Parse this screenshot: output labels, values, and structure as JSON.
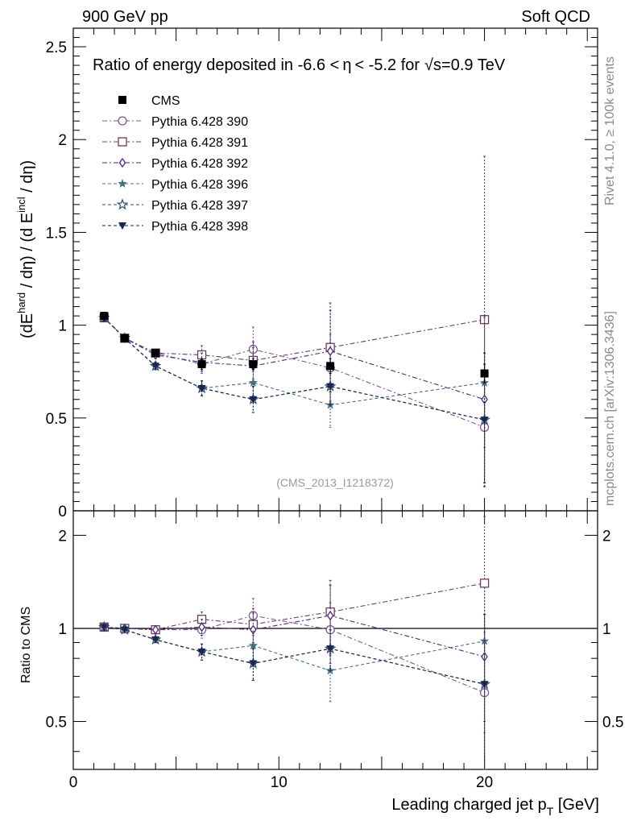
{
  "header": {
    "left": "900 GeV pp",
    "right": "Soft QCD"
  },
  "side_labels": {
    "rivet": "Rivet 4.1.0, ≥ 100k events",
    "mcplots": "mcplots.cern.ch [arXiv:1306.3436]"
  },
  "watermark": "(CMS_2013_I1218372)",
  "colors": {
    "cms": "#000000",
    "p390": "#7d5a8c",
    "p391": "#6e3c5a",
    "p392": "#4b2a7e",
    "p396": "#467082",
    "p397": "#2f4f6e",
    "p398": "#1a2550"
  },
  "chart_data": [
    {
      "type": "scatter",
      "panel": "main",
      "title_parts": {
        "a": "Ratio of energy deposited in -6.6 <",
        "eta": "η",
        "b": "< -5.2 for",
        "sqrt": "√s",
        "c": "=0.9 TeV"
      },
      "ylabel_parts": {
        "p1": "(dE",
        "sup1": "hard",
        "p2": " / dη) / (d E",
        "sup2": "incl",
        "p3": " / dη)"
      },
      "xlim": [
        0,
        25.5
      ],
      "ylim": [
        0,
        2.6
      ],
      "yticks": [
        0,
        0.5,
        1,
        1.5,
        2,
        2.5
      ],
      "ytick_labels": [
        "0",
        "0.5",
        "1",
        "1.5",
        "2",
        "2.5"
      ],
      "x": [
        1.5,
        2.5,
        4.0,
        6.25,
        8.75,
        12.5,
        20.0
      ],
      "series": [
        {
          "name": "CMS",
          "key": "cms",
          "marker": "filled-square",
          "y": [
            1.05,
            0.93,
            0.85,
            0.79,
            0.79,
            0.78,
            0.74
          ],
          "err": [
            0.02,
            0.02,
            0.02,
            0.03,
            0.03,
            0.04,
            0.05
          ]
        },
        {
          "name": "Pythia 6.428 390",
          "key": "p390",
          "marker": "open-circle",
          "dash": "6,3,2,3",
          "y": [
            1.04,
            0.93,
            0.85,
            0.79,
            0.87,
            0.77,
            0.45
          ],
          "err": [
            0.02,
            0.02,
            0.02,
            0.05,
            0.12,
            0.18,
            0.3
          ]
        },
        {
          "name": "Pythia 6.428 391",
          "key": "p391",
          "marker": "open-square",
          "dash": "6,3,2,3",
          "y": [
            1.04,
            0.93,
            0.85,
            0.84,
            0.81,
            0.88,
            1.03
          ],
          "err": [
            0.02,
            0.02,
            0.02,
            0.05,
            0.1,
            0.24,
            0.88
          ]
        },
        {
          "name": "Pythia 6.428 392",
          "key": "p392",
          "marker": "open-diamond",
          "dash": "6,3,2,3",
          "y": [
            1.04,
            0.93,
            0.84,
            0.8,
            0.78,
            0.86,
            0.6
          ],
          "err": [
            0.02,
            0.02,
            0.02,
            0.05,
            0.1,
            0.22,
            0.45
          ]
        },
        {
          "name": "Pythia 6.428 396",
          "key": "p396",
          "marker": "filled-star",
          "dash": "4,3",
          "y": [
            1.04,
            0.93,
            0.78,
            0.66,
            0.69,
            0.57,
            0.69
          ],
          "err": [
            0.02,
            0.02,
            0.02,
            0.04,
            0.08,
            0.12,
            0.35
          ]
        },
        {
          "name": "Pythia 6.428 397",
          "key": "p397",
          "marker": "open-star",
          "dash": "4,3",
          "y": [
            1.04,
            0.93,
            0.78,
            0.66,
            0.6,
            0.67,
            0.49
          ],
          "err": [
            0.02,
            0.02,
            0.02,
            0.04,
            0.07,
            0.1,
            0.36
          ]
        },
        {
          "name": "Pythia 6.428 398",
          "key": "p398",
          "marker": "filled-triangle-down",
          "dash": "4,3",
          "y": [
            1.04,
            0.93,
            0.78,
            0.66,
            0.6,
            0.67,
            0.49
          ],
          "err": [
            0.02,
            0.02,
            0.02,
            0.04,
            0.07,
            0.1,
            0.36
          ]
        }
      ]
    },
    {
      "type": "scatter",
      "panel": "ratio",
      "ylabel": "Ratio to CMS",
      "xlabel_parts": {
        "main": "Leading charged jet p",
        "sub": "T",
        "unit": " [GeV]"
      },
      "xlim": [
        0,
        25.5
      ],
      "ylim": [
        0.35,
        2.4
      ],
      "yscale": "log",
      "xticks": [
        0,
        10,
        20
      ],
      "xtick_labels": [
        "0",
        "10",
        "20"
      ],
      "yticks": [
        0.5,
        1,
        2
      ],
      "ytick_labels": [
        "0.5",
        "1",
        "2"
      ],
      "x": [
        1.5,
        2.5,
        4.0,
        6.25,
        8.75,
        12.5,
        20.0
      ],
      "series": [
        {
          "name": "Pythia 6.428 390",
          "key": "p390",
          "marker": "open-circle",
          "dash": "6,3,2,3",
          "y": [
            1.01,
            1.0,
            0.99,
            0.99,
            1.1,
            0.99,
            0.62
          ],
          "err": [
            0.02,
            0.02,
            0.02,
            0.06,
            0.15,
            0.22,
            0.35
          ]
        },
        {
          "name": "Pythia 6.428 391",
          "key": "p391",
          "marker": "open-square",
          "dash": "6,3,2,3",
          "y": [
            1.01,
            1.0,
            0.99,
            1.07,
            1.03,
            1.13,
            1.4
          ],
          "err": [
            0.02,
            0.02,
            0.02,
            0.06,
            0.13,
            0.3,
            0.9
          ]
        },
        {
          "name": "Pythia 6.428 392",
          "key": "p392",
          "marker": "open-diamond",
          "dash": "6,3,2,3",
          "y": [
            1.01,
            1.0,
            0.99,
            1.01,
            0.99,
            1.1,
            0.81
          ],
          "err": [
            0.02,
            0.02,
            0.02,
            0.06,
            0.13,
            0.28,
            0.55
          ]
        },
        {
          "name": "Pythia 6.428 396",
          "key": "p396",
          "marker": "filled-star",
          "dash": "4,3",
          "y": [
            1.01,
            0.99,
            0.92,
            0.84,
            0.88,
            0.73,
            0.91
          ],
          "err": [
            0.02,
            0.02,
            0.02,
            0.05,
            0.1,
            0.15,
            0.45
          ]
        },
        {
          "name": "Pythia 6.428 397",
          "key": "p397",
          "marker": "open-star",
          "dash": "4,3",
          "y": [
            1.01,
            0.99,
            0.92,
            0.84,
            0.77,
            0.86,
            0.66
          ],
          "err": [
            0.02,
            0.02,
            0.02,
            0.05,
            0.09,
            0.13,
            0.45
          ]
        },
        {
          "name": "Pythia 6.428 398",
          "key": "p398",
          "marker": "filled-triangle-down",
          "dash": "4,3",
          "y": [
            1.01,
            0.99,
            0.92,
            0.84,
            0.77,
            0.86,
            0.66
          ],
          "err": [
            0.02,
            0.02,
            0.02,
            0.05,
            0.09,
            0.13,
            0.45
          ]
        }
      ]
    }
  ]
}
